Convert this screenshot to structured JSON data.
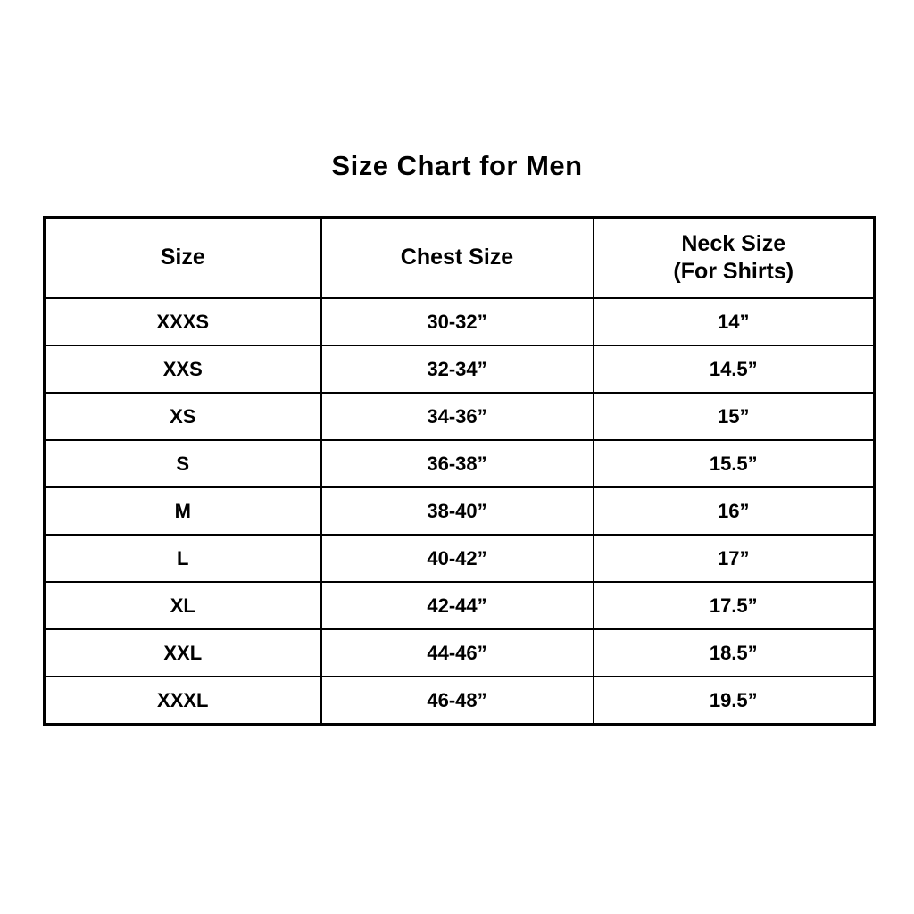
{
  "page": {
    "title": "Size Chart for Men"
  },
  "header": {
    "size": "Size",
    "chest": "Chest Size",
    "neck_line1": "Neck Size",
    "neck_line2": "(For Shirts)"
  },
  "chart_data": {
    "type": "table",
    "title": "Size Chart for Men",
    "columns": [
      "Size",
      "Chest Size",
      "Neck Size (For Shirts)"
    ],
    "rows": [
      [
        "XXXS",
        "30-32”",
        "14”"
      ],
      [
        "XXS",
        "32-34”",
        "14.5”"
      ],
      [
        "XS",
        "34-36”",
        "15”"
      ],
      [
        "S",
        "36-38”",
        "15.5”"
      ],
      [
        "M",
        "38-40”",
        "16”"
      ],
      [
        "L",
        "40-42”",
        "17”"
      ],
      [
        "XL",
        "42-44”",
        "17.5”"
      ],
      [
        "XXL",
        "44-46”",
        "18.5”"
      ],
      [
        "XXXL",
        "46-48”",
        "19.5”"
      ]
    ]
  }
}
